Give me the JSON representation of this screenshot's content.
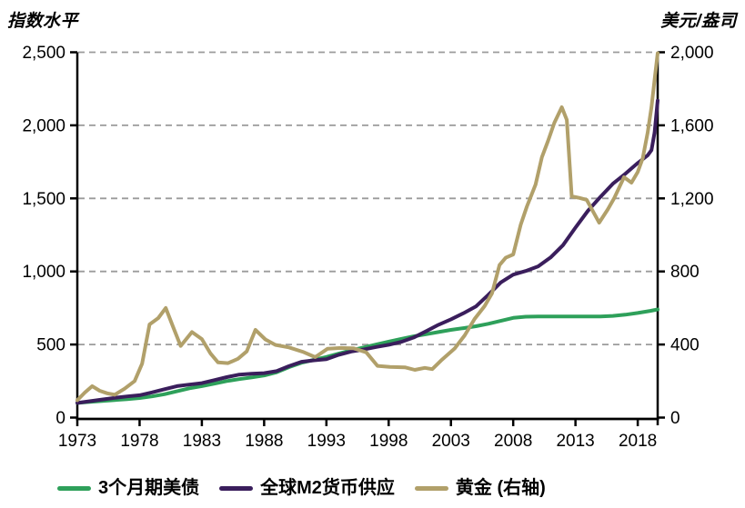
{
  "axis_titles": {
    "left": "指数水平",
    "right": "美元/盎司"
  },
  "legend_note": "legend labels come from chart_data.series names",
  "chart_data": {
    "type": "line",
    "title": "",
    "x_axis": {
      "range": [
        1973,
        2019.6
      ],
      "ticks": [
        {
          "v": 1973,
          "label": "1973"
        },
        {
          "v": 1978,
          "label": "1978"
        },
        {
          "v": 1983,
          "label": "1983"
        },
        {
          "v": 1988,
          "label": "1988"
        },
        {
          "v": 1993,
          "label": "1993"
        },
        {
          "v": 1998,
          "label": "1998"
        },
        {
          "v": 2003,
          "label": "2003"
        },
        {
          "v": 2008,
          "label": "2008"
        },
        {
          "v": 2013,
          "label": "2013"
        },
        {
          "v": 2018,
          "label": "2018"
        }
      ]
    },
    "y_left": {
      "title": "指数水平",
      "range": [
        0,
        2500
      ],
      "ticks": [
        {
          "v": 0,
          "label": "0"
        },
        {
          "v": 500,
          "label": "500"
        },
        {
          "v": 1000,
          "label": "1,000"
        },
        {
          "v": 1500,
          "label": "1,500"
        },
        {
          "v": 2000,
          "label": "2,000"
        },
        {
          "v": 2500,
          "label": "2,500"
        }
      ],
      "gridline_values": [
        500,
        1000,
        1500,
        2000,
        2500
      ]
    },
    "y_right": {
      "title": "美元/盎司",
      "range": [
        0,
        2000
      ],
      "ticks": [
        {
          "v": 0,
          "label": "0"
        },
        {
          "v": 400,
          "label": "400"
        },
        {
          "v": 800,
          "label": "800"
        },
        {
          "v": 1200,
          "label": "1,200"
        },
        {
          "v": 1600,
          "label": "1,600"
        },
        {
          "v": 2000,
          "label": "2,000"
        }
      ]
    },
    "style": {
      "grid_color": "#9b9b9b",
      "grid_dash": "7 5",
      "axis_color": "#000000",
      "text_color": "#000000",
      "line_width": 4
    },
    "legend_position": "bottom",
    "series": [
      {
        "name": "3个月期美债",
        "axis": "left",
        "color": "#2ea05a",
        "points": [
          [
            1973,
            100
          ],
          [
            1974,
            107
          ],
          [
            1975,
            114
          ],
          [
            1976,
            120
          ],
          [
            1977,
            126
          ],
          [
            1978,
            134
          ],
          [
            1979,
            145
          ],
          [
            1980,
            160
          ],
          [
            1981,
            180
          ],
          [
            1982,
            200
          ],
          [
            1983,
            215
          ],
          [
            1984,
            232
          ],
          [
            1985,
            250
          ],
          [
            1986,
            263
          ],
          [
            1987,
            275
          ],
          [
            1988,
            288
          ],
          [
            1989,
            310
          ],
          [
            1990,
            345
          ],
          [
            1991,
            375
          ],
          [
            1992,
            395
          ],
          [
            1993,
            415
          ],
          [
            1994,
            438
          ],
          [
            1995,
            460
          ],
          [
            1996,
            480
          ],
          [
            1997,
            500
          ],
          [
            1998,
            520
          ],
          [
            1999,
            538
          ],
          [
            2000,
            556
          ],
          [
            2001,
            570
          ],
          [
            2002,
            585
          ],
          [
            2003,
            600
          ],
          [
            2004,
            612
          ],
          [
            2005,
            625
          ],
          [
            2006,
            642
          ],
          [
            2007,
            662
          ],
          [
            2008,
            682
          ],
          [
            2009,
            690
          ],
          [
            2010,
            692
          ],
          [
            2011,
            692
          ],
          [
            2012,
            692
          ],
          [
            2013,
            692
          ],
          [
            2014,
            692
          ],
          [
            2015,
            692
          ],
          [
            2016,
            696
          ],
          [
            2017,
            704
          ],
          [
            2018,
            716
          ],
          [
            2019,
            730
          ],
          [
            2019.6,
            740
          ]
        ]
      },
      {
        "name": "全球M2货币供应",
        "axis": "left",
        "color": "#3a1e5c",
        "points": [
          [
            1973,
            100
          ],
          [
            1974,
            112
          ],
          [
            1975,
            124
          ],
          [
            1976,
            135
          ],
          [
            1977,
            145
          ],
          [
            1978,
            153
          ],
          [
            1979,
            172
          ],
          [
            1980,
            194
          ],
          [
            1981,
            215
          ],
          [
            1982,
            226
          ],
          [
            1983,
            236
          ],
          [
            1984,
            256
          ],
          [
            1985,
            277
          ],
          [
            1986,
            294
          ],
          [
            1987,
            300
          ],
          [
            1988,
            304
          ],
          [
            1989,
            318
          ],
          [
            1990,
            352
          ],
          [
            1991,
            382
          ],
          [
            1992,
            392
          ],
          [
            1993,
            400
          ],
          [
            1994,
            430
          ],
          [
            1995,
            452
          ],
          [
            1996,
            466
          ],
          [
            1997,
            483
          ],
          [
            1998,
            498
          ],
          [
            1999,
            518
          ],
          [
            2000,
            548
          ],
          [
            2001,
            590
          ],
          [
            2002,
            635
          ],
          [
            2003,
            672
          ],
          [
            2004,
            714
          ],
          [
            2005,
            760
          ],
          [
            2006,
            840
          ],
          [
            2007,
            925
          ],
          [
            2008,
            978
          ],
          [
            2009,
            1003
          ],
          [
            2010,
            1035
          ],
          [
            2011,
            1096
          ],
          [
            2012,
            1180
          ],
          [
            2013,
            1300
          ],
          [
            2014,
            1415
          ],
          [
            2015,
            1510
          ],
          [
            2016,
            1600
          ],
          [
            2017,
            1668
          ],
          [
            2018,
            1742
          ],
          [
            2018.8,
            1795
          ],
          [
            2019.1,
            1830
          ],
          [
            2019.35,
            1950
          ],
          [
            2019.6,
            2170
          ]
        ]
      },
      {
        "name": "黄金 (右轴)",
        "axis": "right",
        "color": "#b1a06a",
        "points": [
          [
            1973,
            95
          ],
          [
            1973.6,
            137
          ],
          [
            1974.2,
            172
          ],
          [
            1974.8,
            147
          ],
          [
            1975.4,
            133
          ],
          [
            1976,
            125
          ],
          [
            1976.8,
            158
          ],
          [
            1977.6,
            200
          ],
          [
            1978.2,
            295
          ],
          [
            1978.8,
            510
          ],
          [
            1979.5,
            545
          ],
          [
            1980.1,
            600
          ],
          [
            1980.7,
            495
          ],
          [
            1981.3,
            392
          ],
          [
            1982.2,
            468
          ],
          [
            1983,
            430
          ],
          [
            1983.7,
            350
          ],
          [
            1984.3,
            302
          ],
          [
            1985.1,
            298
          ],
          [
            1985.9,
            322
          ],
          [
            1986.6,
            362
          ],
          [
            1987.3,
            480
          ],
          [
            1988.1,
            428
          ],
          [
            1988.9,
            398
          ],
          [
            1990,
            384
          ],
          [
            1991.1,
            360
          ],
          [
            1992.1,
            331
          ],
          [
            1993.1,
            377
          ],
          [
            1994.2,
            381
          ],
          [
            1995.2,
            379
          ],
          [
            1996.2,
            357
          ],
          [
            1997.1,
            283
          ],
          [
            1998.1,
            277
          ],
          [
            1999.3,
            275
          ],
          [
            2000.1,
            261
          ],
          [
            2000.9,
            272
          ],
          [
            2001.5,
            265
          ],
          [
            2002.2,
            312
          ],
          [
            2003.3,
            378
          ],
          [
            2004.1,
            450
          ],
          [
            2004.9,
            540
          ],
          [
            2005.7,
            610
          ],
          [
            2006.3,
            680
          ],
          [
            2006.9,
            835
          ],
          [
            2007.4,
            875
          ],
          [
            2008,
            893
          ],
          [
            2008.6,
            1055
          ],
          [
            2009.1,
            1155
          ],
          [
            2009.8,
            1276
          ],
          [
            2010.3,
            1425
          ],
          [
            2010.8,
            1515
          ],
          [
            2011.3,
            1614
          ],
          [
            2011.9,
            1699
          ],
          [
            2012.3,
            1630
          ],
          [
            2012.7,
            1211
          ],
          [
            2013.3,
            1203
          ],
          [
            2013.9,
            1192
          ],
          [
            2014.4,
            1130
          ],
          [
            2014.9,
            1067
          ],
          [
            2015.6,
            1140
          ],
          [
            2016.1,
            1200
          ],
          [
            2016.9,
            1316
          ],
          [
            2017.5,
            1286
          ],
          [
            2018,
            1345
          ],
          [
            2018.4,
            1420
          ],
          [
            2018.8,
            1560
          ],
          [
            2019.1,
            1700
          ],
          [
            2019.4,
            1880
          ],
          [
            2019.6,
            1995
          ]
        ]
      }
    ]
  }
}
